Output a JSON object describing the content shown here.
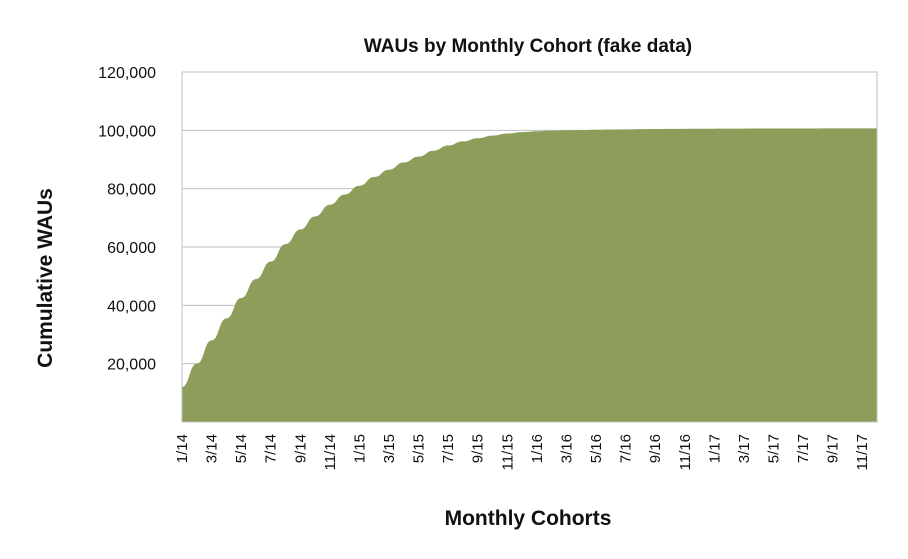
{
  "chart_data": {
    "type": "area",
    "title": "WAUs by Monthly Cohort (fake data)",
    "xlabel": "Monthly Cohorts",
    "ylabel": "Cumulative WAUs",
    "ylim": [
      0,
      120000
    ],
    "yticks": [
      20000,
      40000,
      60000,
      80000,
      100000,
      120000
    ],
    "ytick_labels": [
      "20,000",
      "40,000",
      "60,000",
      "80,000",
      "100,000",
      "120,000"
    ],
    "grid": true,
    "legend": "none",
    "colors": {
      "area": "#8c9e5a",
      "grid": "#bfbfbf"
    },
    "x": [
      "1/14",
      "2/14",
      "3/14",
      "4/14",
      "5/14",
      "6/14",
      "7/14",
      "8/14",
      "9/14",
      "10/14",
      "11/14",
      "12/14",
      "1/15",
      "2/15",
      "3/15",
      "4/15",
      "5/15",
      "6/15",
      "7/15",
      "8/15",
      "9/15",
      "10/15",
      "11/15",
      "12/15",
      "1/16",
      "2/16",
      "3/16",
      "4/16",
      "5/16",
      "6/16",
      "7/16",
      "8/16",
      "9/16",
      "10/16",
      "11/16",
      "12/16",
      "1/17",
      "2/17",
      "3/17",
      "4/17",
      "5/17",
      "6/17",
      "7/17",
      "8/17",
      "9/17",
      "10/17",
      "11/17",
      "12/17"
    ],
    "xtick_labels": [
      "1/14",
      "3/14",
      "5/14",
      "7/14",
      "9/14",
      "11/14",
      "1/15",
      "3/15",
      "5/15",
      "7/15",
      "9/15",
      "11/15",
      "1/16",
      "3/16",
      "5/16",
      "7/16",
      "9/16",
      "11/16",
      "1/17",
      "3/17",
      "5/17",
      "7/17",
      "9/17",
      "11/17"
    ],
    "series": [
      {
        "values": [
          12000,
          20000,
          28000,
          35500,
          42500,
          49000,
          55000,
          61000,
          66000,
          70500,
          74500,
          78000,
          81000,
          84000,
          86500,
          89000,
          91000,
          93000,
          94800,
          96200,
          97300,
          98200,
          98900,
          99400,
          99700,
          99900,
          100000,
          100100,
          100200,
          100300,
          100350,
          100400,
          100450,
          100500,
          100520,
          100540,
          100560,
          100580,
          100600,
          100610,
          100620,
          100630,
          100640,
          100650,
          100660,
          100670,
          100680,
          100690
        ]
      }
    ]
  }
}
